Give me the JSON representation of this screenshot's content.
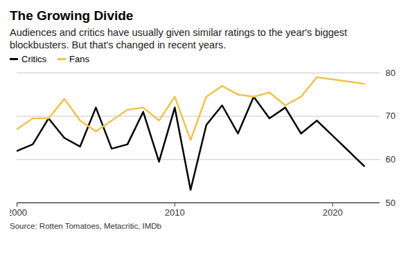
{
  "chart_data": {
    "type": "line",
    "title": "The Growing Divide",
    "subtitle": "Audiences and critics have usually given similar ratings to the year's biggest blockbusters. But that's changed in recent years.",
    "caption": "Source: Rotten Tomatoes, Metacritic, IMDb",
    "x": [
      2000,
      2001,
      2002,
      2003,
      2004,
      2005,
      2006,
      2007,
      2008,
      2009,
      2010,
      2011,
      2012,
      2013,
      2014,
      2015,
      2016,
      2017,
      2018,
      2019,
      2022
    ],
    "series": [
      {
        "name": "Critics",
        "color": "#000000",
        "values": [
          62,
          63.5,
          69.5,
          65,
          63,
          72,
          62.5,
          63.5,
          71,
          59.5,
          72,
          53,
          68,
          72.5,
          66,
          74.5,
          69.5,
          72,
          66,
          69,
          58.5
        ]
      },
      {
        "name": "Fans",
        "color": "#f0c24b",
        "values": [
          67,
          69.5,
          69.5,
          74,
          69,
          66.5,
          69,
          71.5,
          72,
          69,
          74.5,
          64.5,
          74.5,
          77,
          75,
          74.5,
          75.5,
          72.5,
          74.5,
          79,
          77.5
        ]
      }
    ],
    "xlim": [
      2000,
      2023
    ],
    "xticks": [
      2000,
      2010,
      2020
    ],
    "ylim": [
      50,
      80
    ],
    "yticks": [
      50,
      60,
      70,
      80
    ],
    "grid": true,
    "legend": "top-left"
  }
}
